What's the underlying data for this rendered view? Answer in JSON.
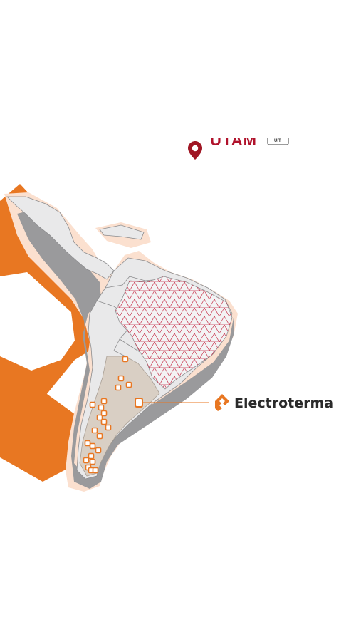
{
  "header": {
    "brand_partial": "UTAM",
    "badge_label": "UIT",
    "pin_icon": "map-pin-icon",
    "pin_color": "#a01624",
    "text_color": "#b0122b"
  },
  "map": {
    "region": "Latin America",
    "land_color": "#e9e9ea",
    "shadow_color": "#9a9a9c",
    "halo_color": "#fbe0cf",
    "brazil_pattern": "triangular-mesh",
    "brazil_pattern_color": "#c8344d",
    "highlight_region": "Argentina",
    "highlight_color": "#d9cfc4",
    "site_marker_icon": "location-square-icon",
    "site_marker_color": "#e87722",
    "site_count": 22
  },
  "callout": {
    "brand_name": "Electroterma",
    "logo_icon": "electroterma-logo-icon",
    "logo_color": "#e87722",
    "text_color": "#2b2b2b",
    "line_color": "#e87722"
  },
  "decor": {
    "accent_color": "#e87722"
  }
}
